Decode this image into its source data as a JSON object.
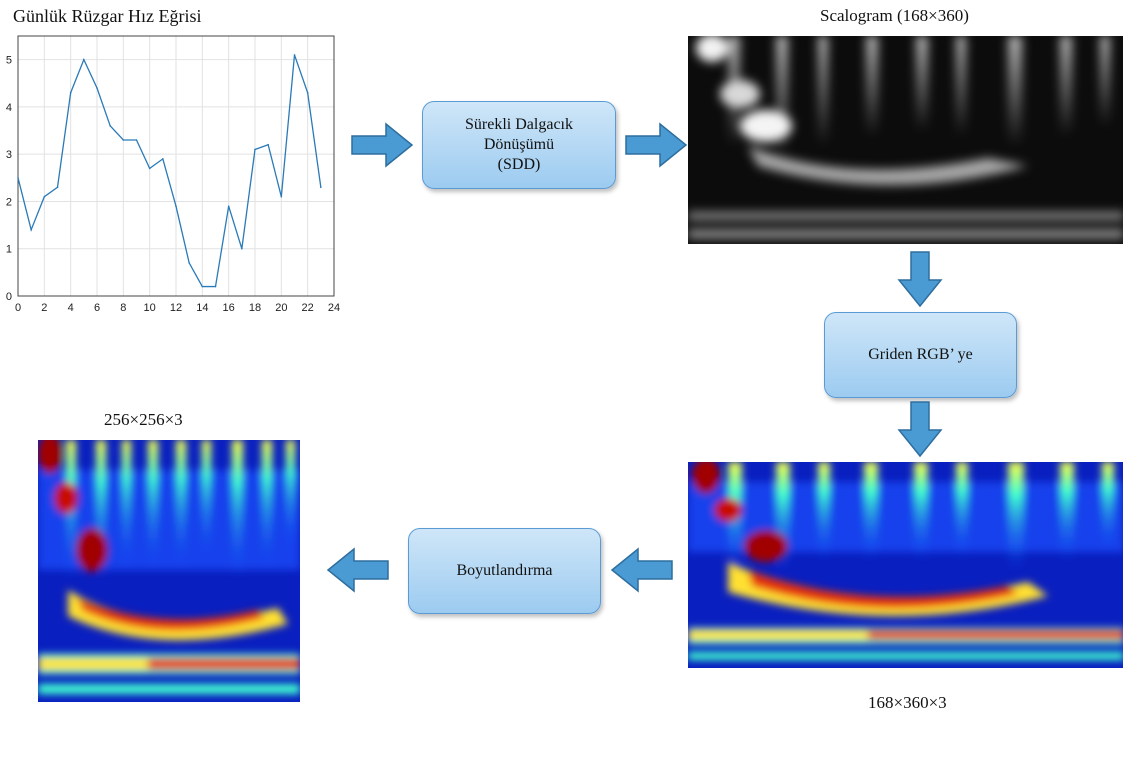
{
  "chart_title": "Günlük Rüzgar Hız Eğrisi",
  "scalogram_title": "Scalogram (168×360)",
  "rgb_caption": "168×360×3",
  "resized_caption": "256×256×3",
  "nodes": {
    "cwt": {
      "line1": "Sürekli Dalgacık",
      "line2": "Dönüşümü",
      "line3": "(SDD)"
    },
    "gray_to_rgb": {
      "label": "Griden RGB’ ye"
    },
    "resize": {
      "label": "Boyutlandırma"
    }
  },
  "colors": {
    "arrow_fill": "#4a9bd3",
    "arrow_stroke": "#2e6e9e",
    "line": "#2a7ab8"
  },
  "chart_data": {
    "type": "line",
    "title": "Günlük Rüzgar Hız Eğrisi",
    "xlabel": "",
    "ylabel": "",
    "x": [
      0,
      1,
      2,
      3,
      4,
      5,
      6,
      7,
      8,
      9,
      10,
      11,
      12,
      13,
      14,
      15,
      16,
      17,
      18,
      19,
      20,
      21,
      22,
      23
    ],
    "series": [
      {
        "values": [
          2.5,
          1.4,
          2.1,
          2.3,
          4.3,
          5.0,
          4.4,
          3.6,
          3.3,
          3.3,
          2.7,
          2.9,
          1.9,
          0.7,
          0.2,
          0.2,
          1.9,
          1.0,
          3.1,
          3.2,
          2.1,
          5.1,
          4.3,
          2.3
        ]
      }
    ],
    "xlim": [
      0,
      24
    ],
    "ylim": [
      0,
      5.5
    ],
    "xticks": [
      "0",
      "2",
      "4",
      "6",
      "8",
      "10",
      "12",
      "14",
      "16",
      "18",
      "20",
      "22",
      "24"
    ],
    "yticks": [
      "0",
      "1",
      "2",
      "3",
      "4",
      "5"
    ],
    "grid": true
  }
}
